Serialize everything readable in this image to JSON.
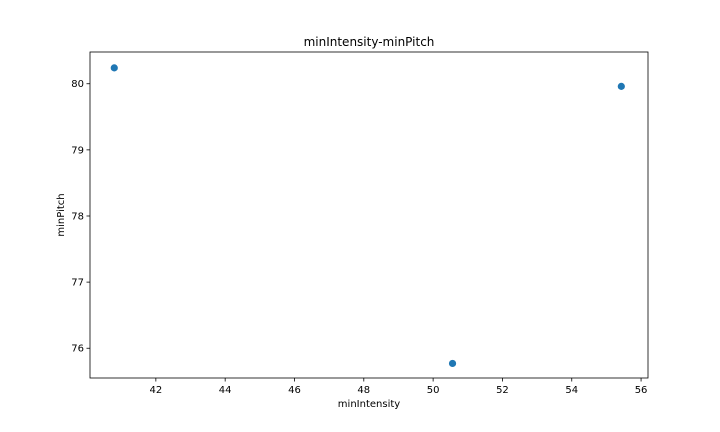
{
  "chart_data": {
    "type": "scatter",
    "title": "minIntensity-minPitch",
    "xlabel": "minIntensity",
    "ylabel": "minPitch",
    "xlim": [
      40.1,
      56.2
    ],
    "ylim": [
      75.55,
      80.48
    ],
    "xticks": [
      42,
      44,
      46,
      48,
      50,
      52,
      54,
      56
    ],
    "yticks": [
      76,
      77,
      78,
      79,
      80
    ],
    "grid": false,
    "marker_color": "#1f77b4",
    "series": [
      {
        "x": [
          40.8,
          50.56,
          55.43
        ],
        "y": [
          80.24,
          75.77,
          79.96
        ]
      }
    ]
  }
}
